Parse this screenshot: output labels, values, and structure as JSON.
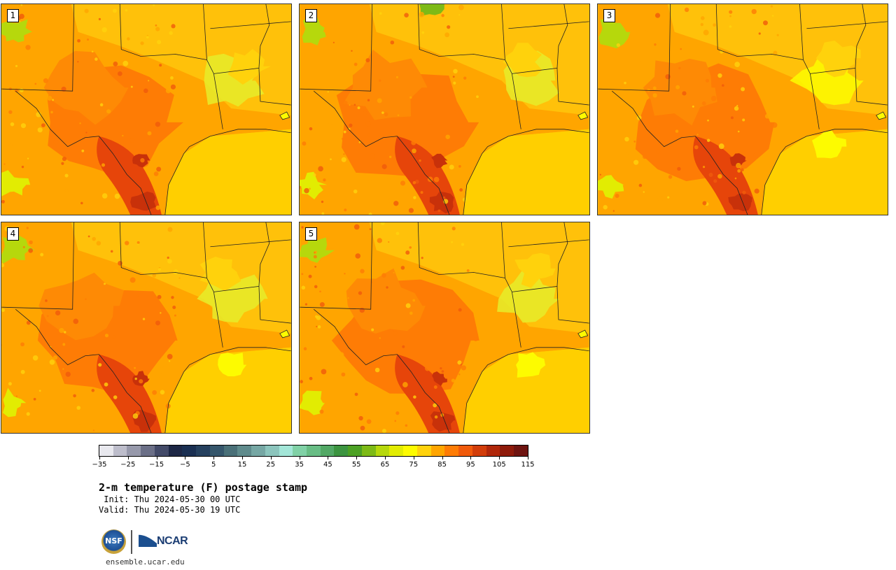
{
  "panels": [
    {
      "label": "1",
      "variant": 1
    },
    {
      "label": "2",
      "variant": 2
    },
    {
      "label": "3",
      "variant": 3
    },
    {
      "label": "4",
      "variant": 4
    },
    {
      "label": "5",
      "variant": 5
    }
  ],
  "colorbar": {
    "colors": [
      "#e8e8ee",
      "#bdbdcb",
      "#9799ab",
      "#6b6f87",
      "#434a68",
      "#1d2745",
      "#1a2f52",
      "#25405e",
      "#35566b",
      "#4a7078",
      "#5f8b8c",
      "#76a7a4",
      "#8cc5bd",
      "#a3e6d8",
      "#80d1a6",
      "#68bd85",
      "#52a865",
      "#3c9440",
      "#4ca124",
      "#7dba16",
      "#b6d80c",
      "#e2ec02",
      "#fdfb00",
      "#ffd20c",
      "#ffa500",
      "#fe7c05",
      "#f05a0b",
      "#d23d0a",
      "#b0270a",
      "#8e1a0a",
      "#6e1410"
    ],
    "tick_labels": [
      "−35",
      "−25",
      "−15",
      "−5",
      "5",
      "15",
      "25",
      "35",
      "45",
      "55",
      "65",
      "75",
      "85",
      "95",
      "105",
      "115"
    ]
  },
  "title": "2-m temperature (F) postage stamp",
  "init": " Init: Thu 2024-05-30 00 UTC",
  "valid": "Valid: Thu 2024-05-30 19 UTC",
  "logos": {
    "nsf": "NSF",
    "ncar": "NCAR"
  },
  "site": "ensemble.ucar.edu"
}
